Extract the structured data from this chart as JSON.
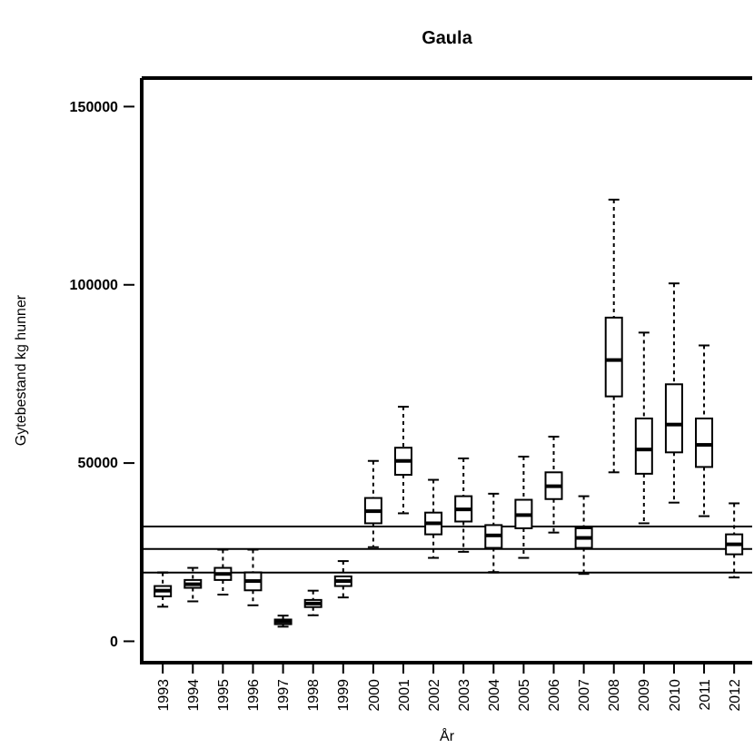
{
  "chart_data": {
    "type": "box",
    "title": "Gaula",
    "xlabel": "År",
    "ylabel": "Gytebestand kg hunner",
    "categories": [
      "1993",
      "1994",
      "1995",
      "1996",
      "1997",
      "1998",
      "1999",
      "2000",
      "2001",
      "2002",
      "2003",
      "2004",
      "2005",
      "2006",
      "2007",
      "2008",
      "2009",
      "2010",
      "2011",
      "2012"
    ],
    "boxes": [
      {
        "low": 9700,
        "q1": 12600,
        "median": 14200,
        "q3": 15500,
        "high": 19300
      },
      {
        "low": 11200,
        "q1": 15000,
        "median": 16000,
        "q3": 17200,
        "high": 20600
      },
      {
        "low": 13100,
        "q1": 17200,
        "median": 18900,
        "q3": 20600,
        "high": 25700
      },
      {
        "low": 10100,
        "q1": 14300,
        "median": 16900,
        "q3": 19300,
        "high": 25700
      },
      {
        "low": 4100,
        "q1": 4800,
        "median": 5500,
        "q3": 6100,
        "high": 7200
      },
      {
        "low": 7300,
        "q1": 9600,
        "median": 10600,
        "q3": 11600,
        "high": 14200
      },
      {
        "low": 12300,
        "q1": 15500,
        "median": 16900,
        "q3": 18200,
        "high": 22500
      },
      {
        "low": 26400,
        "q1": 33100,
        "median": 36500,
        "q3": 40200,
        "high": 50600
      },
      {
        "low": 35900,
        "q1": 46700,
        "median": 50600,
        "q3": 54300,
        "high": 65800
      },
      {
        "low": 23400,
        "q1": 30000,
        "median": 33100,
        "q3": 36100,
        "high": 45300
      },
      {
        "low": 25100,
        "q1": 33600,
        "median": 37000,
        "q3": 40700,
        "high": 51300
      },
      {
        "low": 19400,
        "q1": 26200,
        "median": 29700,
        "q3": 32600,
        "high": 41400
      },
      {
        "low": 23400,
        "q1": 31700,
        "median": 35400,
        "q3": 39700,
        "high": 51800
      },
      {
        "low": 30500,
        "q1": 39900,
        "median": 43500,
        "q3": 47400,
        "high": 57400
      },
      {
        "low": 18900,
        "q1": 26200,
        "median": 29000,
        "q3": 31700,
        "high": 40700
      },
      {
        "low": 47400,
        "q1": 68700,
        "median": 78900,
        "q3": 90800,
        "high": 123900
      },
      {
        "low": 33100,
        "q1": 47000,
        "median": 53800,
        "q3": 62500,
        "high": 86600
      },
      {
        "low": 38900,
        "q1": 53000,
        "median": 60800,
        "q3": 72100,
        "high": 100400
      },
      {
        "low": 35100,
        "q1": 48900,
        "median": 55100,
        "q3": 62500,
        "high": 83000
      },
      {
        "low": 17900,
        "q1": 24400,
        "median": 27200,
        "q3": 30000,
        "high": 38700
      }
    ],
    "ylim": [
      -6000,
      158000
    ],
    "yticks": [
      0,
      50000,
      100000,
      150000
    ],
    "ref_lines": [
      {
        "axis": "y",
        "value": 32200
      },
      {
        "axis": "y",
        "value": 25900
      },
      {
        "axis": "y",
        "value": 19300
      }
    ],
    "grid": false
  }
}
